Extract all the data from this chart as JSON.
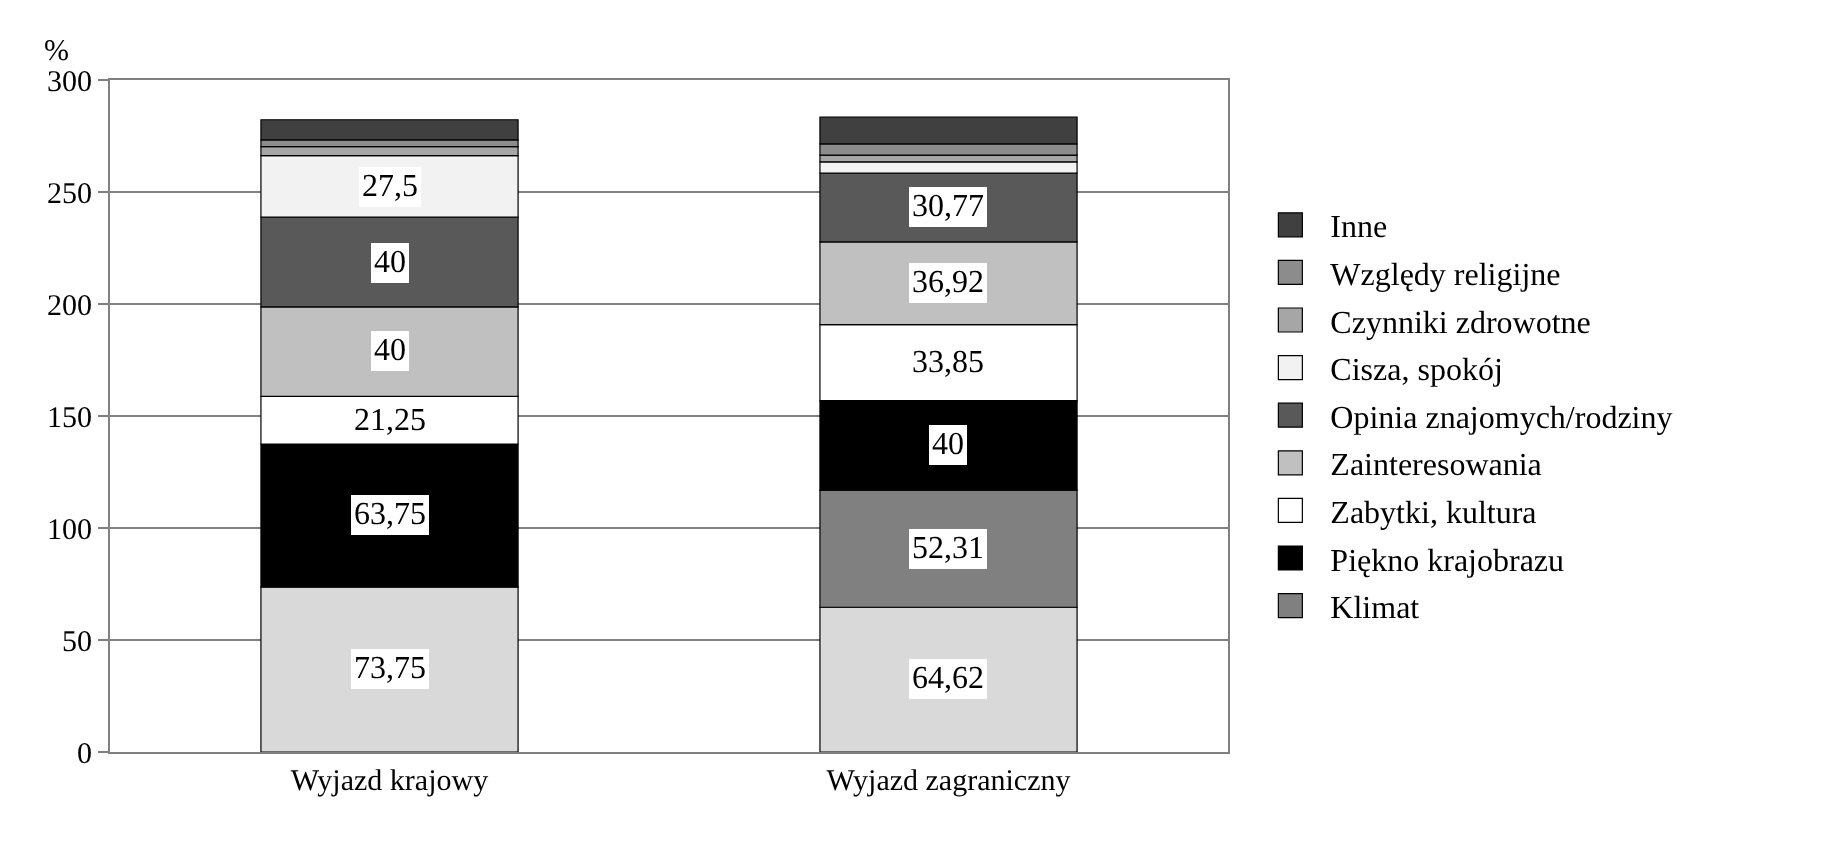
{
  "chart_data": {
    "type": "bar",
    "stacked": true,
    "ylabel": "%",
    "categories": [
      "Wyjazd krajowy",
      "Wyjazd zagraniczny"
    ],
    "ylim": [
      0,
      300
    ],
    "yticks": [
      0,
      50,
      100,
      150,
      200,
      250,
      300
    ],
    "grid": "y",
    "legend": "right",
    "series": [
      {
        "color": "#d9d9d9",
        "values": [
          73.75,
          64.62
        ],
        "value_labels": [
          "73,75",
          "64,62"
        ]
      },
      {
        "name": "Klimat",
        "color": "#808080",
        "values": [
          0,
          52.31
        ],
        "value_labels": [
          null,
          "52,31"
        ]
      },
      {
        "name": "Piękno krajobrazu",
        "color": "#000000",
        "values": [
          63.75,
          40
        ],
        "value_labels": [
          "63,75",
          "40"
        ]
      },
      {
        "name": "Zabytki, kultura",
        "color": "#ffffff",
        "values": [
          21.25,
          33.85
        ],
        "value_labels": [
          "21,25",
          "33,85"
        ]
      },
      {
        "name": "Zainteresowania",
        "color": "#c0c0c0",
        "values": [
          40,
          36.92
        ],
        "value_labels": [
          "40",
          "36,92"
        ]
      },
      {
        "name": "Opinia znajomych/rodziny",
        "color": "#595959",
        "values": [
          40,
          30.77
        ],
        "value_labels": [
          "40",
          "30,77"
        ]
      },
      {
        "name": "Cisza, spokój",
        "color": "#f2f2f2",
        "values": [
          27.5,
          5
        ],
        "value_labels": [
          "27,5",
          null
        ]
      },
      {
        "name": "Czynniki zdrowotne",
        "color": "#a6a6a6",
        "values": [
          4,
          3
        ],
        "value_labels": [
          null,
          null
        ]
      },
      {
        "name": "Względy religijne",
        "color": "#8c8c8c",
        "values": [
          3,
          5
        ],
        "value_labels": [
          null,
          null
        ]
      },
      {
        "name": "Inne",
        "color": "#404040",
        "values": [
          9,
          12
        ],
        "value_labels": [
          null,
          null
        ]
      }
    ]
  }
}
